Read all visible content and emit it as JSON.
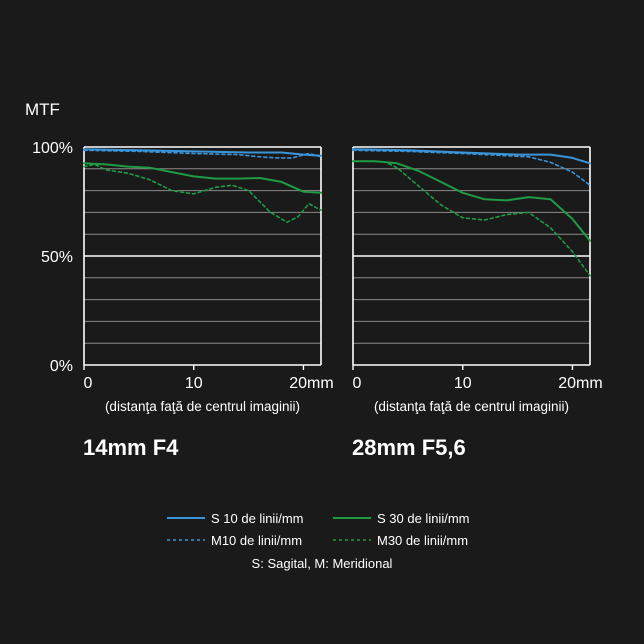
{
  "y_axis_title": "MTF",
  "y_tick_labels": [
    "100%",
    "50%",
    "0%"
  ],
  "x_tick_labels": [
    "0",
    "10",
    "20mm"
  ],
  "x_axis_label": "(distanţa faţă de centrul imaginii)",
  "legend": {
    "s10": "S 10 de linii/mm",
    "s30": "S 30 de linii/mm",
    "m10": "M10 de linii/mm",
    "m30": "M30 de linii/mm",
    "note": "S: Sagital, M: Meridional"
  },
  "colors": {
    "blue": "#3a95d8",
    "green": "#1f9a45",
    "grid": "#8a8a8a",
    "background": "#1a1a1a"
  },
  "chart_data": [
    {
      "type": "line",
      "title": "14mm F4",
      "xlabel": "(distanţa faţă de centrul imaginii)",
      "ylabel": "MTF",
      "xlim": [
        0,
        21.6
      ],
      "ylim": [
        0,
        100
      ],
      "series": [
        {
          "name": "S 10 de linii/mm",
          "color": "#3a95d8",
          "dash": false,
          "x": [
            0,
            5,
            10,
            15,
            18,
            20,
            21.6
          ],
          "y": [
            99,
            98.5,
            98,
            97.5,
            97.5,
            96.5,
            96
          ]
        },
        {
          "name": "M10 de linii/mm",
          "color": "#3a95d8",
          "dash": true,
          "x": [
            0,
            5,
            10,
            14,
            16,
            17.5,
            19,
            20.5,
            21.6
          ],
          "y": [
            98.5,
            98,
            97,
            96.5,
            95.5,
            95,
            95,
            97,
            95.5
          ]
        },
        {
          "name": "S 30 de linii/mm",
          "color": "#1f9a45",
          "dash": false,
          "x": [
            0,
            2,
            4,
            6,
            8,
            10,
            12,
            14,
            16,
            18,
            20,
            21.6
          ],
          "y": [
            92.5,
            92,
            91,
            90.5,
            88.5,
            86.5,
            85.5,
            85.5,
            85.8,
            84,
            79.5,
            79
          ]
        },
        {
          "name": "M30 de linii/mm",
          "color": "#1f9a45",
          "dash": true,
          "x": [
            0,
            1,
            2,
            4,
            6,
            8,
            10,
            12,
            13.5,
            15,
            17,
            18.5,
            19.5,
            20.5,
            21.6
          ],
          "y": [
            91,
            92,
            89.5,
            88,
            85,
            80,
            78.5,
            81.5,
            82.5,
            80,
            70,
            65.5,
            68,
            74,
            71
          ]
        }
      ]
    },
    {
      "type": "line",
      "title": "28mm F5,6",
      "xlabel": "(distanţa faţă de centrul imaginii)",
      "ylabel": "MTF",
      "xlim": [
        0,
        21.6
      ],
      "ylim": [
        0,
        100
      ],
      "series": [
        {
          "name": "S 10 de linii/mm",
          "color": "#3a95d8",
          "dash": false,
          "x": [
            0,
            5,
            10,
            15,
            18,
            20,
            21.6
          ],
          "y": [
            99,
            98.5,
            97.5,
            96.5,
            96.5,
            95,
            92.5
          ]
        },
        {
          "name": "M10 de linii/mm",
          "color": "#3a95d8",
          "dash": true,
          "x": [
            0,
            5,
            10,
            14,
            16,
            18,
            20,
            21.6
          ],
          "y": [
            98.5,
            98,
            97,
            96,
            95.5,
            93,
            88.5,
            82.5
          ]
        },
        {
          "name": "S 30 de linii/mm",
          "color": "#1f9a45",
          "dash": false,
          "x": [
            0,
            2,
            4,
            6,
            8,
            10,
            12,
            14,
            16,
            18,
            20,
            21.6
          ],
          "y": [
            93.5,
            93.5,
            92.5,
            89,
            84,
            79,
            76,
            75.5,
            77,
            76,
            67,
            57
          ]
        },
        {
          "name": "M30 de linii/mm",
          "color": "#1f9a45",
          "dash": true,
          "x": [
            0,
            2,
            3,
            4,
            6,
            8,
            10,
            12,
            14,
            16,
            18,
            20,
            21.6
          ],
          "y": [
            93.5,
            93.5,
            93,
            90.5,
            82,
            73.5,
            67.5,
            66.5,
            69,
            70,
            63,
            52,
            41
          ]
        }
      ]
    }
  ]
}
